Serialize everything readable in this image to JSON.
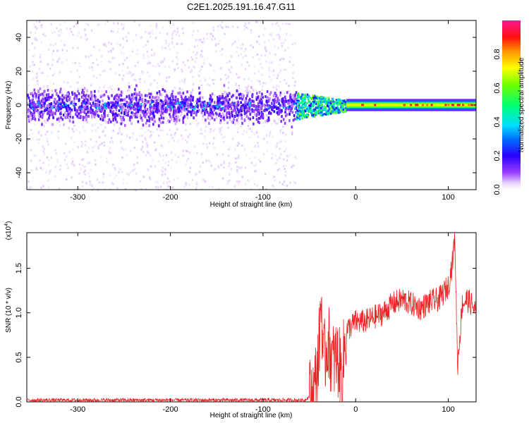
{
  "title": "C2E1.2025.191.16.47.G11",
  "colors": {
    "snr_line": "#ee2222",
    "colormap": [
      "#ffffff",
      "#e6d0ff",
      "#b070ff",
      "#7a00ff",
      "#0000ff",
      "#00c8ff",
      "#00ff60",
      "#a0ff00",
      "#ffff00",
      "#ff7000",
      "#ff0000",
      "#ff1493"
    ]
  },
  "chart_data": [
    {
      "type": "heatmap",
      "xlabel": "Height of straight line (km)",
      "ylabel": "Frequency (Hz)",
      "xlim": [
        -355,
        130
      ],
      "ylim": [
        -50,
        50
      ],
      "xticks": [
        -300,
        -200,
        -100,
        0,
        100
      ],
      "yticks": [
        -40,
        -20,
        0,
        20,
        40
      ],
      "colorbar": {
        "label": "Normalized spectral amplitude",
        "range": [
          0,
          1
        ],
        "ticks": [
          "0.0",
          "0.2",
          "0.4",
          "0.6",
          "0.8"
        ],
        "tick_values": [
          0,
          0.2,
          0.4,
          0.6,
          0.8
        ]
      },
      "regions": [
        {
          "name": "noise",
          "x_range": [
            -355,
            -65
          ],
          "core_halfwidth_hz": 10,
          "core_amplitude": 0.15,
          "scatter_halfwidth_hz": 50,
          "scatter_amplitude": 0.03
        },
        {
          "name": "transition",
          "x_range": [
            -65,
            -10
          ],
          "core_halfwidth_hz": 8,
          "core_amplitude": 0.5
        },
        {
          "name": "signal",
          "x_range": [
            -10,
            130
          ],
          "center_hz": 0,
          "core_halfwidth_hz": 2,
          "peak_amplitude": 0.95
        }
      ]
    },
    {
      "type": "line",
      "xlabel": "Height of straight line (km)",
      "ylabel": "SNR (10 * v/v)",
      "yscale_label": "(x10",
      "yscale_exp": "4",
      "yscale_close": ")",
      "xlim": [
        -355,
        130
      ],
      "ylim": [
        0,
        1.9
      ],
      "xticks": [
        -300,
        -200,
        -100,
        0,
        100
      ],
      "yticks": [
        0.0,
        0.5,
        1.0,
        1.5
      ],
      "ytick_labels": [
        "0.0",
        "0.5",
        "1.0",
        "1.5"
      ],
      "series": [
        {
          "x": [
            -355,
            -300,
            -200,
            -100,
            -55,
            -45,
            -40,
            -37,
            -35,
            -30,
            -25,
            -20,
            -15,
            -10,
            -5,
            0,
            10,
            20,
            30,
            40,
            50,
            60,
            70,
            80,
            90,
            100,
            105,
            107,
            110,
            115,
            120,
            125,
            130
          ],
          "y": [
            0.02,
            0.02,
            0.02,
            0.02,
            0.02,
            0.1,
            0.5,
            1.2,
            0.4,
            0.7,
            0.45,
            0.5,
            0.3,
            0.8,
            0.85,
            0.9,
            0.9,
            0.95,
            1.0,
            1.1,
            1.15,
            1.1,
            1.05,
            1.12,
            1.15,
            1.3,
            1.6,
            1.9,
            0.4,
            1.1,
            1.15,
            1.1,
            1.0
          ]
        }
      ]
    }
  ]
}
